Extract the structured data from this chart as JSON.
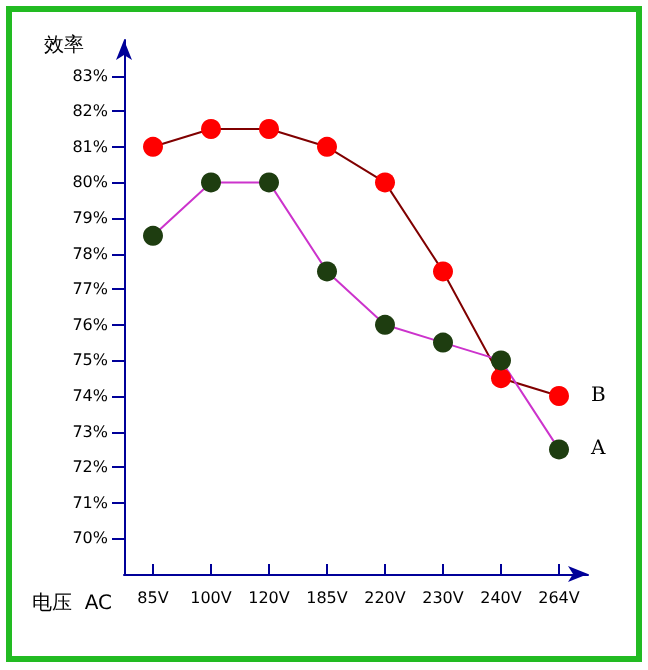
{
  "chart_data": {
    "type": "line",
    "ylabel": "效率",
    "xlabel": "电压  AC",
    "categories": [
      "85V",
      "100V",
      "120V",
      "185V",
      "220V",
      "230V",
      "240V",
      "264V"
    ],
    "series": [
      {
        "name": "B",
        "color": "#ff0000",
        "values": [
          81.0,
          81.5,
          81.5,
          81.0,
          80.0,
          77.5,
          74.5,
          74.0
        ]
      },
      {
        "name": "A",
        "color": "#1e3d10",
        "values": [
          78.5,
          80.0,
          80.0,
          77.5,
          76.0,
          75.5,
          75.0,
          72.5
        ]
      }
    ],
    "ylim": [
      69,
      84
    ],
    "yticks": [
      {
        "value": 70,
        "label": "70%"
      },
      {
        "value": 71,
        "label": "71%"
      },
      {
        "value": 72,
        "label": "72%"
      },
      {
        "value": 73,
        "label": "73%"
      },
      {
        "value": 74,
        "label": "74%"
      },
      {
        "value": 75,
        "label": "75%"
      },
      {
        "value": 76,
        "label": "76%"
      },
      {
        "value": 77,
        "label": "77%"
      },
      {
        "value": 78,
        "label": "78%"
      },
      {
        "value": 79,
        "label": "79%"
      },
      {
        "value": 80,
        "label": "80%"
      },
      {
        "value": 81,
        "label": "81%"
      },
      {
        "value": 82,
        "label": "82%"
      },
      {
        "value": 83,
        "label": "83%"
      }
    ],
    "grid": false,
    "legend": false,
    "marker": "circle",
    "line_style": "solid"
  }
}
